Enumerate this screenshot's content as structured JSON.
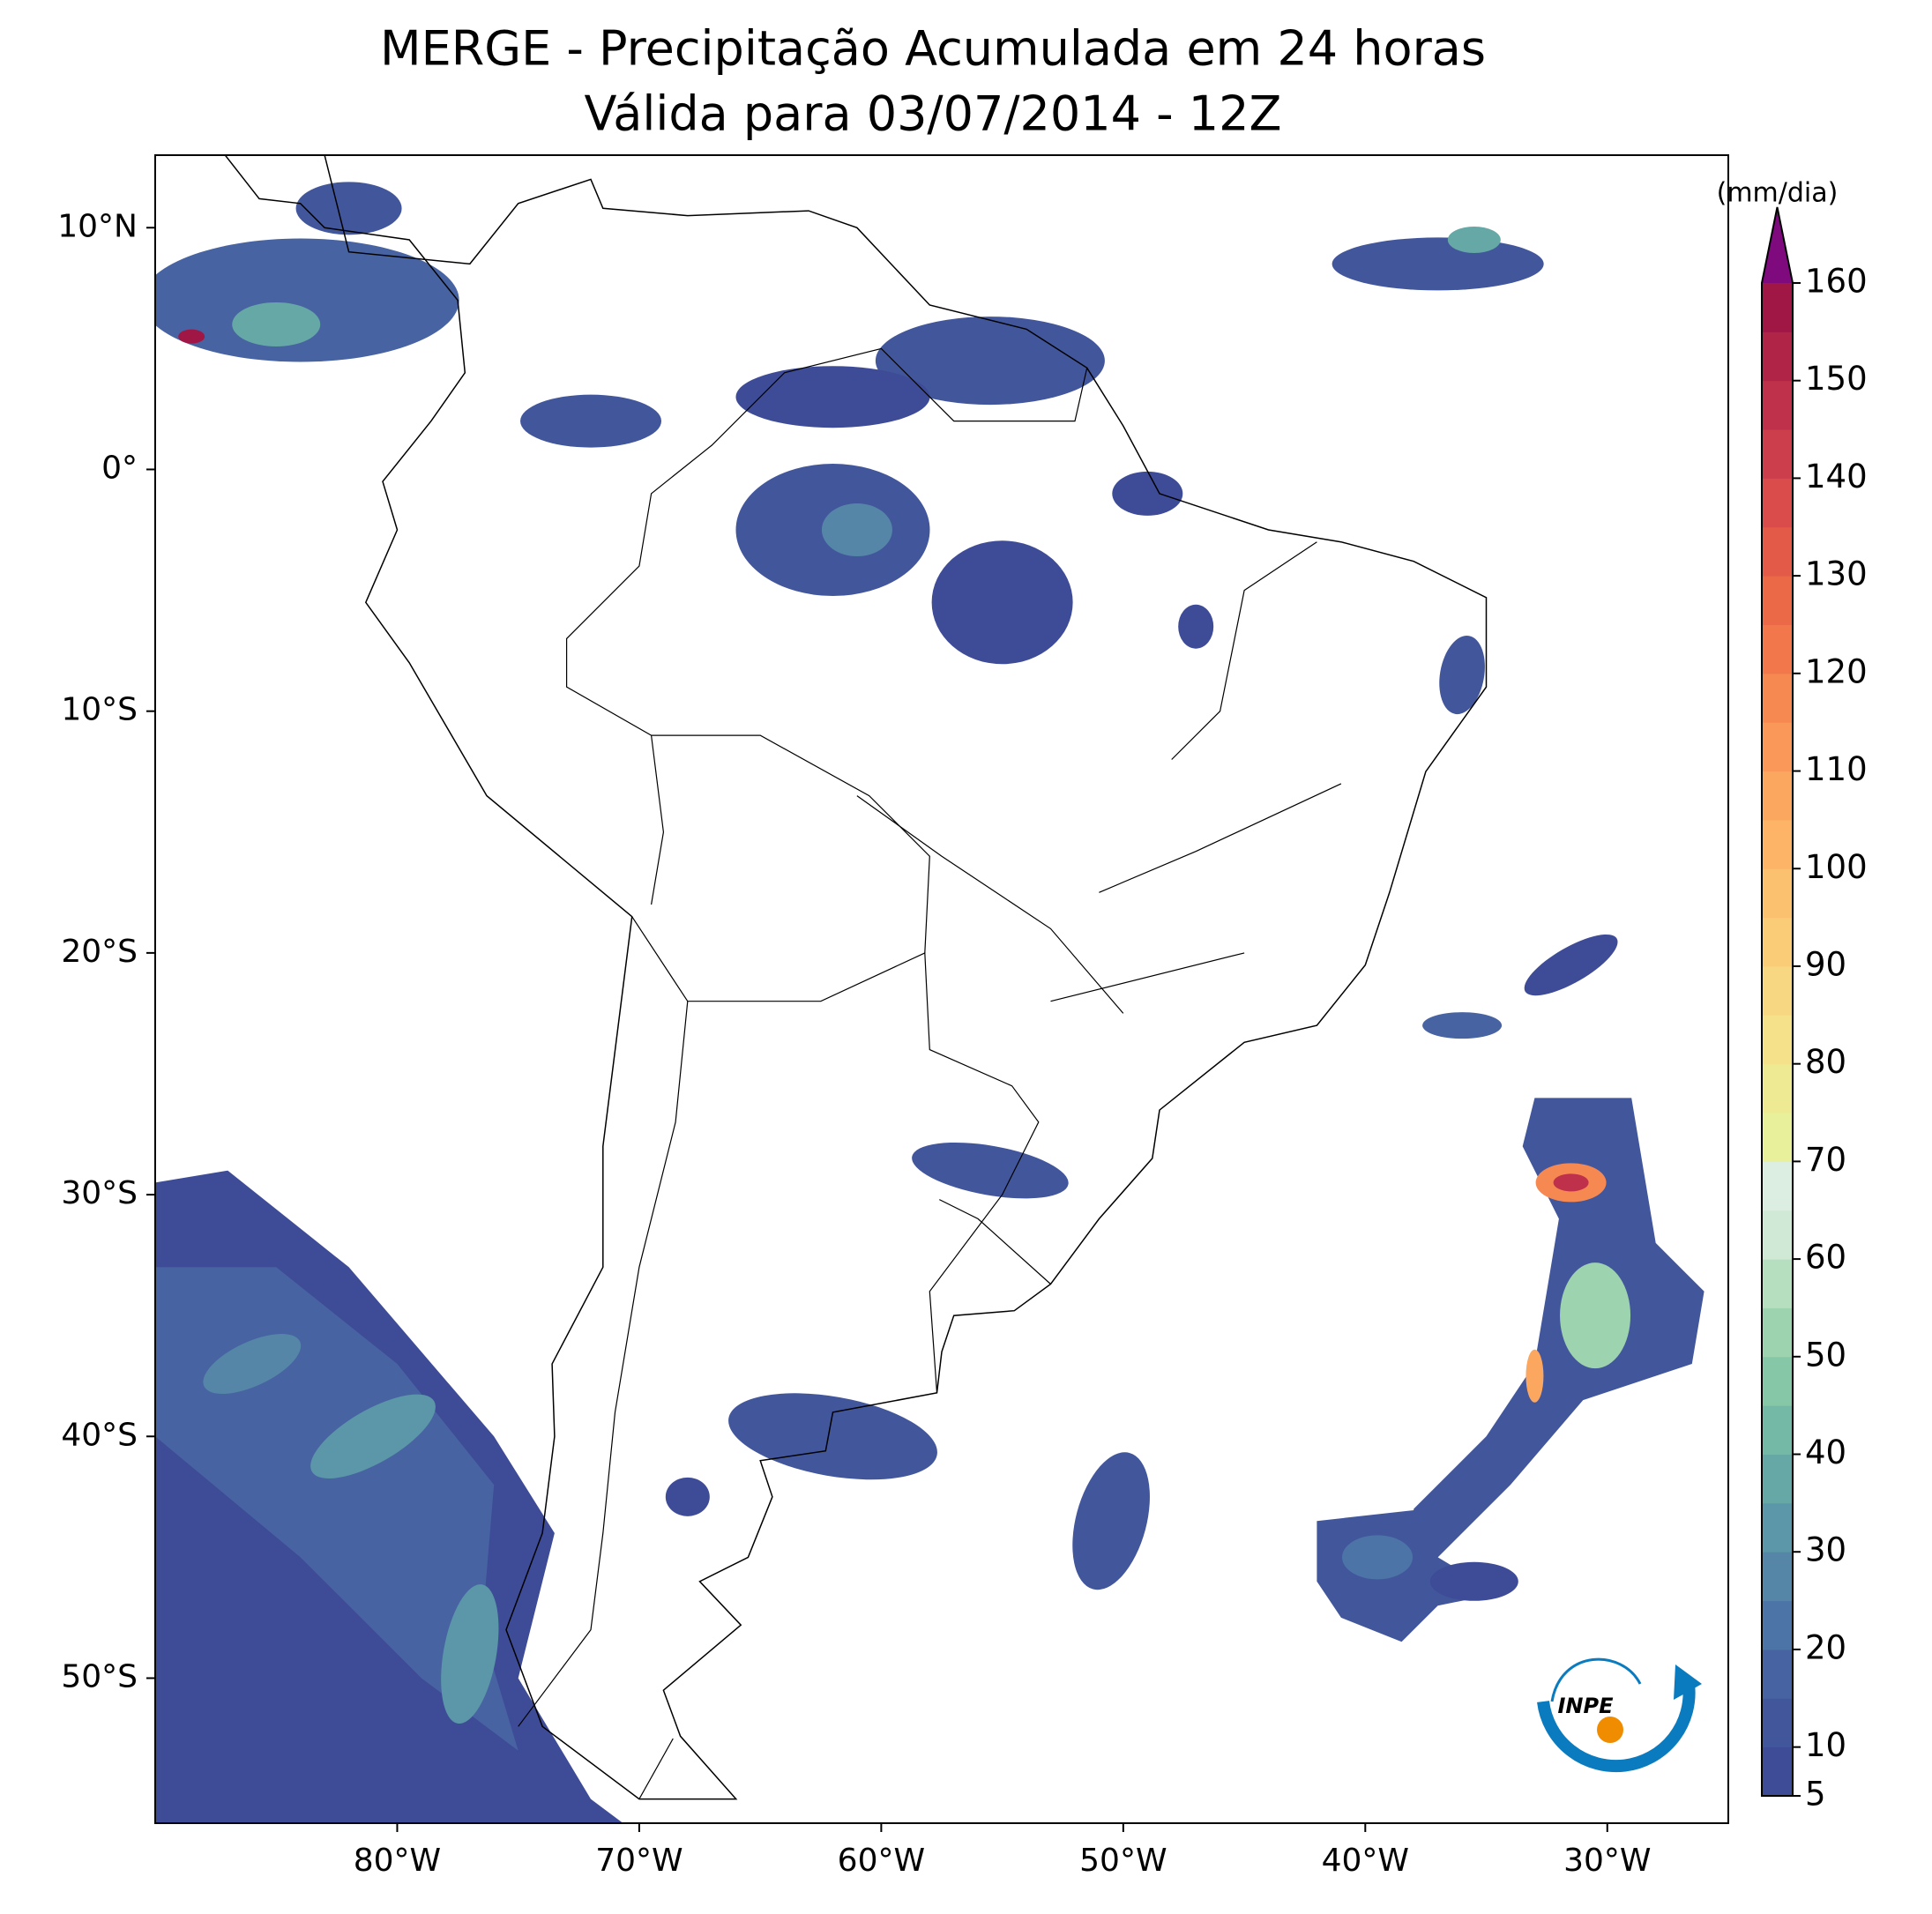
{
  "title": "MERGE - Precipitação Acumulada em 24 horas",
  "subtitle": "Válida para 03/07/2014 - 12Z",
  "map": {
    "xlim": [
      -90,
      -25
    ],
    "ylim": [
      -56,
      13
    ],
    "xticks": [
      {
        "value": -80,
        "label": "80°W"
      },
      {
        "value": -70,
        "label": "70°W"
      },
      {
        "value": -60,
        "label": "60°W"
      },
      {
        "value": -50,
        "label": "50°W"
      },
      {
        "value": -40,
        "label": "40°W"
      },
      {
        "value": -30,
        "label": "30°W"
      }
    ],
    "yticks": [
      {
        "value": 10,
        "label": "10°N"
      },
      {
        "value": 0,
        "label": "0°"
      },
      {
        "value": -10,
        "label": "10°S"
      },
      {
        "value": -20,
        "label": "20°S"
      },
      {
        "value": -30,
        "label": "30°S"
      },
      {
        "value": -40,
        "label": "40°S"
      },
      {
        "value": -50,
        "label": "50°S"
      }
    ]
  },
  "colorbar": {
    "label": "(mm/dia)",
    "lim": [
      5,
      160
    ],
    "ticks": [
      5,
      10,
      20,
      30,
      40,
      50,
      60,
      70,
      80,
      90,
      100,
      110,
      120,
      130,
      140,
      150,
      160
    ],
    "levels": [
      5,
      10,
      15,
      20,
      25,
      30,
      35,
      40,
      45,
      50,
      55,
      60,
      65,
      70,
      75,
      80,
      85,
      90,
      95,
      100,
      105,
      110,
      115,
      120,
      125,
      130,
      135,
      140,
      145,
      150,
      155,
      160
    ],
    "colors": [
      "#3e4b97",
      "#42569c",
      "#4763a2",
      "#4d74a7",
      "#5586a8",
      "#5b97a8",
      "#65a8a5",
      "#73b9a5",
      "#86c7a8",
      "#9dd3af",
      "#b6dfbf",
      "#cfe9d6",
      "#dceee2",
      "#e8f09c",
      "#eeea93",
      "#f4e18a",
      "#f8d783",
      "#fbcc78",
      "#fcc16f",
      "#fdb466",
      "#fba75f",
      "#f99858",
      "#f68851",
      "#f2784b",
      "#ec6947",
      "#e45a48",
      "#da4b4b",
      "#cd3e4d",
      "#bf314b",
      "#af2447",
      "#a01644"
    ],
    "extend_color": "#7e0a7e"
  },
  "logo": {
    "text": "INPE"
  }
}
